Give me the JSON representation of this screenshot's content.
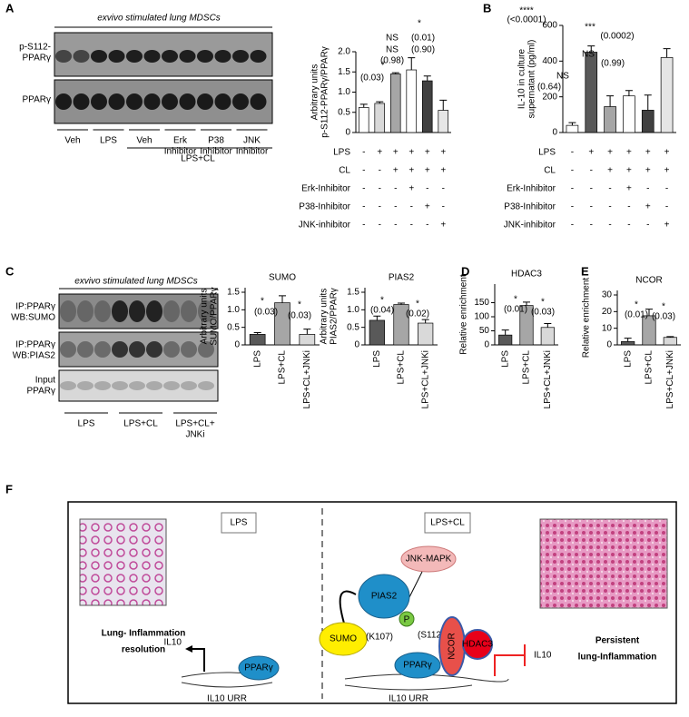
{
  "panel_labels": [
    "A",
    "B",
    "C",
    "D",
    "E",
    "F"
  ],
  "blot_a": {
    "title": "exvivo stimulated lung MDSCs",
    "rows": [
      "p-S112-PPARγ",
      "PPARγ"
    ],
    "lanes": [
      "Veh",
      "LPS",
      "Veh",
      "Erk Inhibitor",
      "P38 Inhibitor",
      "JNK Inhibitor"
    ],
    "group": "LPS+CL"
  },
  "blot_c": {
    "title": "exvivo stimulated lung MDSCs",
    "rows": [
      "IP:PPARγ WB:SUMO",
      "IP:PPARγ WB:PIAS2",
      "Input PPARγ"
    ],
    "lanes": [
      "LPS",
      "LPS+CL",
      "LPS+CL+ JNKi"
    ]
  },
  "chart_data": [
    {
      "type": "bar",
      "y_label": [
        "Arbitrary units",
        "p-S112-PPARγ/PPARγ"
      ],
      "categories": [
        null,
        null,
        null,
        null,
        null,
        null
      ],
      "values": [
        0.62,
        0.72,
        1.45,
        1.55,
        1.28,
        0.55
      ],
      "errors": [
        0.08,
        0.04,
        0.03,
        0.3,
        0.12,
        0.25
      ],
      "colors": [
        "#ffffff",
        "#d9d9d9",
        "#a6a6a6",
        "#ffffff",
        "#404040",
        "#e6e6e6"
      ],
      "ylim": [
        0,
        2
      ],
      "yticks": [
        0,
        0.5,
        {
          "value": 1,
          "label": "1.0"
        },
        1.5,
        {
          "value": 2,
          "label": "2.0"
        }
      ],
      "annotations": [
        "*",
        "NS",
        "(0.01)",
        "NS",
        "(0.90)",
        "(0.98)",
        "*",
        "(0.03)"
      ],
      "conditions": {
        "rows": [
          "LPS",
          "CL",
          "Erk-Inhibitor",
          "P38-Inhibitor",
          "JNK-inhibitor"
        ],
        "signs": [
          [
            "-",
            "+",
            "+",
            "+",
            "+",
            "+"
          ],
          [
            "-",
            "-",
            "+",
            "+",
            "+",
            "+"
          ],
          [
            "-",
            "-",
            "-",
            "+",
            "-",
            "-"
          ],
          [
            "-",
            "-",
            "-",
            "-",
            "+",
            "-"
          ],
          [
            "-",
            "-",
            "-",
            "-",
            "-",
            "+"
          ]
        ]
      }
    },
    {
      "type": "bar",
      "y_label": [
        "IL-10 in culture",
        "supernatant (pg/ml)"
      ],
      "categories": [
        null,
        null,
        null,
        null,
        null,
        null
      ],
      "values": [
        40,
        450,
        145,
        205,
        125,
        420
      ],
      "errors": [
        15,
        35,
        60,
        30,
        85,
        50
      ],
      "colors": [
        "#ffffff",
        "#595959",
        "#a6a6a6",
        "#ffffff",
        "#404040",
        "#e6e6e6"
      ],
      "ylim": [
        0,
        600
      ],
      "yticks": [
        0,
        200,
        400,
        600
      ],
      "annotations": [
        "****",
        "(<0.0001)",
        "***",
        "(0.0002)",
        "NS",
        "(0.99)",
        "NS",
        "(0.64)"
      ],
      "conditions": {
        "rows": [
          "LPS",
          "CL",
          "Erk-Inhibitor",
          "P38-Inhibitor",
          "JNK-inhibitor"
        ],
        "signs": [
          [
            "-",
            "+",
            "+",
            "+",
            "+",
            "+"
          ],
          [
            "-",
            "-",
            "+",
            "+",
            "+",
            "+"
          ],
          [
            "-",
            "-",
            "-",
            "+",
            "-",
            "-"
          ],
          [
            "-",
            "-",
            "-",
            "-",
            "+",
            "-"
          ],
          [
            "-",
            "-",
            "-",
            "-",
            "-",
            "+"
          ]
        ]
      }
    },
    {
      "type": "bar",
      "title": "SUMO",
      "y_label": [
        "Arbitrary units",
        "SUMO/PPARγ"
      ],
      "categories": [
        "LPS",
        "LPS+CL",
        "LPS+CL+JNKi"
      ],
      "values": [
        0.3,
        1.2,
        0.3
      ],
      "errors": [
        0.05,
        0.2,
        0.15
      ],
      "colors": [
        "#595959",
        "#a6a6a6",
        "#d9d9d9"
      ],
      "ylim": [
        0,
        1.5
      ],
      "yticks": [
        0,
        0.5,
        {
          "value": 1,
          "label": "1.0"
        },
        1.5
      ],
      "annotations": [
        "*",
        "(0.03)",
        "*",
        "(0.03)"
      ]
    },
    {
      "type": "bar",
      "title": "PIAS2",
      "y_label": [
        "Arbitrary units",
        "PIAS2/PPARγ"
      ],
      "categories": [
        "LPS",
        "LPS+CL",
        "LPS+CL+JNKi"
      ],
      "values": [
        0.7,
        1.15,
        0.62
      ],
      "errors": [
        0.12,
        0.04,
        0.1
      ],
      "colors": [
        "#595959",
        "#a6a6a6",
        "#d9d9d9"
      ],
      "ylim": [
        0,
        1.5
      ],
      "yticks": [
        0,
        0.5,
        {
          "value": 1,
          "label": "1.0"
        },
        1.5
      ],
      "annotations": [
        "*",
        "(0.04)",
        "*",
        "(0.02)"
      ]
    },
    {
      "type": "bar",
      "title": "HDAC3",
      "y_label": [
        "Relative enrichment"
      ],
      "categories": [
        "LPS",
        "LPS+CL",
        "LPS+CL+JNKi"
      ],
      "values": [
        35,
        140,
        62
      ],
      "errors": [
        18,
        12,
        14
      ],
      "colors": [
        "#595959",
        "#a6a6a6",
        "#d9d9d9"
      ],
      "ylim": [
        0,
        200
      ],
      "yticks": [
        0,
        50,
        100,
        150
      ],
      "annotations": [
        "*",
        "(0.01)",
        "*",
        "(0.03)"
      ]
    },
    {
      "type": "bar",
      "title": "NCOR",
      "y_label": [
        "Relative enrichment"
      ],
      "categories": [
        "LPS",
        "LPS+CL",
        "LPS+CL+JNKi"
      ],
      "values": [
        2,
        17.5,
        4.5
      ],
      "errors": [
        2,
        4,
        0.5
      ],
      "colors": [
        "#595959",
        "#a6a6a6",
        "#d9d9d9"
      ],
      "ylim": [
        0,
        30
      ],
      "yticks": [
        0,
        10,
        20,
        30
      ],
      "annotations": [
        "*",
        "(0.01)",
        "*",
        "(0.03)"
      ]
    }
  ],
  "diagram": {
    "left_title": "LPS",
    "right_title": "LPS+CL",
    "left_outcome": [
      "Lung- Inflammation",
      "resolution"
    ],
    "left_gene": "IL10",
    "left_protein": "PPARγ",
    "left_urr": "IL10 URR",
    "jnk": "JNK-MAPK",
    "pias2": "PIAS2",
    "p": "P",
    "s112": "(S112)",
    "sumo": "SUMO",
    "k107": "(K107)",
    "right_protein": "PPARγ",
    "ncor": "NCOR",
    "hdac3": "HDAC3",
    "right_gene": "IL10",
    "right_outcome": [
      "Persistent",
      "lung-Inflammation"
    ],
    "right_urr": "IL10 URR"
  }
}
